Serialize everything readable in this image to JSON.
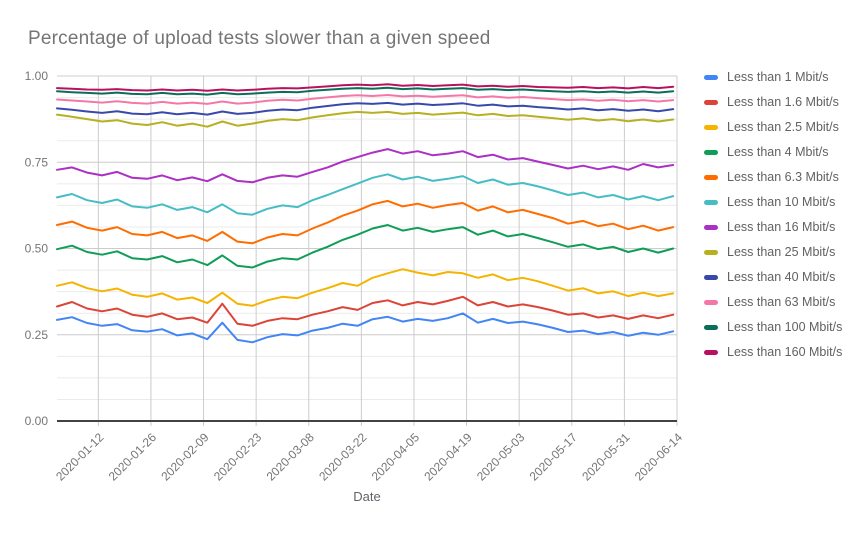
{
  "chart_data": {
    "type": "line",
    "title": "Percentage of upload tests slower than a given speed",
    "xlabel": "Date",
    "ylabel": "",
    "ylim": [
      0,
      1
    ],
    "y_ticks": [
      0,
      0.25,
      0.5,
      0.75,
      1
    ],
    "y_tick_labels": [
      "0.00",
      "0.25",
      "0.50",
      "0.75",
      "1.00"
    ],
    "y_minor_divisions": 16,
    "x_start_date": "2020-01-01",
    "x_domain_days": [
      0,
      165
    ],
    "x_sample_step_days": 4,
    "x_tick_days": [
      11,
      25,
      39,
      53,
      67,
      81,
      95,
      109,
      123,
      137,
      151,
      165
    ],
    "x_tick_labels": [
      "2020-01-12",
      "2020-01-26",
      "2020-02-09",
      "2020-02-23",
      "2020-03-08",
      "2020-03-22",
      "2020-04-05",
      "2020-04-19",
      "2020-05-03",
      "2020-05-17",
      "2020-05-31",
      "2020-06-14"
    ],
    "legend_position": "right",
    "grid": true,
    "colors": {
      "grid": "#cccccc",
      "minor_grid": "#ebebeb",
      "axis": "#424242",
      "tick_label": "#757575",
      "title": "#757575"
    },
    "series": [
      {
        "name": "Less than 1 Mbit/s",
        "color": "#4285F4",
        "values": [
          0.293,
          0.301,
          0.284,
          0.276,
          0.281,
          0.263,
          0.259,
          0.266,
          0.248,
          0.254,
          0.237,
          0.285,
          0.235,
          0.228,
          0.243,
          0.252,
          0.248,
          0.262,
          0.27,
          0.282,
          0.276,
          0.295,
          0.302,
          0.288,
          0.296,
          0.29,
          0.298,
          0.312,
          0.285,
          0.296,
          0.284,
          0.288,
          0.28,
          0.27,
          0.258,
          0.262,
          0.252,
          0.258,
          0.247,
          0.256,
          0.25,
          0.26
        ]
      },
      {
        "name": "Less than 1.6 Mbit/s",
        "color": "#DB4437",
        "values": [
          0.332,
          0.345,
          0.326,
          0.318,
          0.326,
          0.308,
          0.302,
          0.312,
          0.295,
          0.3,
          0.285,
          0.34,
          0.282,
          0.276,
          0.29,
          0.298,
          0.295,
          0.308,
          0.318,
          0.33,
          0.322,
          0.342,
          0.35,
          0.335,
          0.345,
          0.338,
          0.348,
          0.36,
          0.335,
          0.345,
          0.332,
          0.338,
          0.33,
          0.32,
          0.308,
          0.312,
          0.3,
          0.306,
          0.296,
          0.306,
          0.298,
          0.308
        ]
      },
      {
        "name": "Less than 2.5 Mbit/s",
        "color": "#F4B400",
        "values": [
          0.392,
          0.402,
          0.385,
          0.376,
          0.384,
          0.366,
          0.36,
          0.37,
          0.352,
          0.358,
          0.342,
          0.372,
          0.34,
          0.334,
          0.35,
          0.36,
          0.356,
          0.372,
          0.385,
          0.4,
          0.392,
          0.415,
          0.428,
          0.44,
          0.43,
          0.422,
          0.432,
          0.428,
          0.415,
          0.425,
          0.408,
          0.415,
          0.405,
          0.392,
          0.378,
          0.385,
          0.37,
          0.376,
          0.362,
          0.372,
          0.362,
          0.37
        ]
      },
      {
        "name": "Less than 4 Mbit/s",
        "color": "#0F9D58",
        "values": [
          0.498,
          0.508,
          0.49,
          0.482,
          0.492,
          0.472,
          0.468,
          0.478,
          0.46,
          0.468,
          0.452,
          0.48,
          0.45,
          0.445,
          0.462,
          0.472,
          0.468,
          0.488,
          0.505,
          0.525,
          0.54,
          0.558,
          0.568,
          0.552,
          0.56,
          0.548,
          0.556,
          0.562,
          0.54,
          0.552,
          0.535,
          0.542,
          0.53,
          0.518,
          0.505,
          0.512,
          0.498,
          0.505,
          0.49,
          0.5,
          0.488,
          0.5
        ]
      },
      {
        "name": "Less than 6.3 Mbit/s",
        "color": "#FF6D00",
        "values": [
          0.568,
          0.578,
          0.56,
          0.552,
          0.562,
          0.542,
          0.538,
          0.548,
          0.53,
          0.538,
          0.522,
          0.548,
          0.52,
          0.515,
          0.532,
          0.542,
          0.538,
          0.558,
          0.575,
          0.595,
          0.61,
          0.628,
          0.638,
          0.622,
          0.63,
          0.618,
          0.626,
          0.632,
          0.61,
          0.622,
          0.605,
          0.612,
          0.6,
          0.588,
          0.572,
          0.58,
          0.565,
          0.572,
          0.556,
          0.566,
          0.552,
          0.562
        ]
      },
      {
        "name": "Less than 10 Mbit/s",
        "color": "#46BDC6",
        "values": [
          0.648,
          0.658,
          0.64,
          0.632,
          0.642,
          0.622,
          0.618,
          0.628,
          0.612,
          0.62,
          0.605,
          0.628,
          0.602,
          0.598,
          0.615,
          0.625,
          0.62,
          0.64,
          0.655,
          0.672,
          0.688,
          0.705,
          0.715,
          0.7,
          0.708,
          0.696,
          0.702,
          0.71,
          0.69,
          0.7,
          0.685,
          0.69,
          0.68,
          0.668,
          0.655,
          0.662,
          0.648,
          0.655,
          0.642,
          0.652,
          0.64,
          0.652
        ]
      },
      {
        "name": "Less than 16 Mbit/s",
        "color": "#AB30C4",
        "values": [
          0.728,
          0.735,
          0.72,
          0.712,
          0.722,
          0.705,
          0.702,
          0.712,
          0.698,
          0.706,
          0.695,
          0.715,
          0.696,
          0.692,
          0.705,
          0.712,
          0.708,
          0.722,
          0.735,
          0.752,
          0.765,
          0.778,
          0.788,
          0.775,
          0.782,
          0.77,
          0.775,
          0.782,
          0.765,
          0.772,
          0.758,
          0.762,
          0.752,
          0.742,
          0.732,
          0.74,
          0.73,
          0.738,
          0.728,
          0.745,
          0.735,
          0.742
        ]
      },
      {
        "name": "Less than 25 Mbit/s",
        "color": "#B7B021",
        "values": [
          0.888,
          0.882,
          0.875,
          0.868,
          0.872,
          0.862,
          0.858,
          0.866,
          0.856,
          0.862,
          0.853,
          0.868,
          0.856,
          0.862,
          0.87,
          0.875,
          0.872,
          0.88,
          0.886,
          0.892,
          0.896,
          0.893,
          0.896,
          0.89,
          0.893,
          0.888,
          0.891,
          0.894,
          0.886,
          0.89,
          0.884,
          0.886,
          0.882,
          0.878,
          0.873,
          0.877,
          0.871,
          0.875,
          0.869,
          0.874,
          0.868,
          0.874
        ]
      },
      {
        "name": "Less than 40 Mbit/s",
        "color": "#3949AB",
        "values": [
          0.906,
          0.902,
          0.897,
          0.893,
          0.898,
          0.891,
          0.889,
          0.895,
          0.889,
          0.893,
          0.888,
          0.897,
          0.89,
          0.893,
          0.899,
          0.903,
          0.901,
          0.908,
          0.913,
          0.918,
          0.921,
          0.919,
          0.922,
          0.917,
          0.92,
          0.916,
          0.918,
          0.921,
          0.914,
          0.917,
          0.912,
          0.914,
          0.91,
          0.907,
          0.903,
          0.906,
          0.901,
          0.904,
          0.899,
          0.903,
          0.898,
          0.904
        ]
      },
      {
        "name": "Less than 63 Mbit/s",
        "color": "#F478A7",
        "values": [
          0.932,
          0.929,
          0.926,
          0.923,
          0.927,
          0.922,
          0.92,
          0.925,
          0.92,
          0.923,
          0.919,
          0.926,
          0.92,
          0.923,
          0.928,
          0.931,
          0.929,
          0.934,
          0.938,
          0.942,
          0.944,
          0.942,
          0.945,
          0.941,
          0.943,
          0.94,
          0.942,
          0.944,
          0.938,
          0.941,
          0.937,
          0.939,
          0.936,
          0.933,
          0.93,
          0.932,
          0.928,
          0.931,
          0.927,
          0.93,
          0.926,
          0.93
        ]
      },
      {
        "name": "Less than 100 Mbit/s",
        "color": "#0B6E5A",
        "values": [
          0.956,
          0.953,
          0.951,
          0.949,
          0.952,
          0.948,
          0.947,
          0.951,
          0.947,
          0.949,
          0.946,
          0.951,
          0.947,
          0.949,
          0.952,
          0.954,
          0.953,
          0.957,
          0.96,
          0.963,
          0.965,
          0.963,
          0.966,
          0.962,
          0.964,
          0.961,
          0.963,
          0.965,
          0.96,
          0.962,
          0.959,
          0.961,
          0.958,
          0.956,
          0.954,
          0.956,
          0.953,
          0.955,
          0.952,
          0.955,
          0.952,
          0.956
        ]
      },
      {
        "name": "Less than 160 Mbit/s",
        "color": "#B8125E",
        "values": [
          0.965,
          0.963,
          0.961,
          0.96,
          0.962,
          0.959,
          0.958,
          0.961,
          0.958,
          0.96,
          0.957,
          0.961,
          0.958,
          0.96,
          0.963,
          0.965,
          0.964,
          0.967,
          0.97,
          0.973,
          0.975,
          0.973,
          0.976,
          0.972,
          0.974,
          0.971,
          0.973,
          0.975,
          0.97,
          0.972,
          0.969,
          0.971,
          0.968,
          0.967,
          0.966,
          0.968,
          0.965,
          0.967,
          0.964,
          0.968,
          0.965,
          0.969
        ]
      }
    ]
  }
}
